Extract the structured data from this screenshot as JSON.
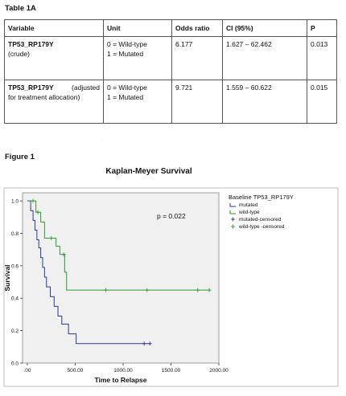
{
  "table": {
    "title": "Table 1A",
    "headers": [
      "Variable",
      "Unit",
      "Odds ratio",
      "CI (95%)",
      "P"
    ],
    "rows": [
      {
        "variable": "TP53_RP179Y",
        "variable_sub": "(crude)",
        "variable_suffix": "",
        "unit_line1": "0 = Wild-type",
        "unit_line2": "1 = Mutated",
        "odds_ratio": "6.177",
        "ci": "1.627 – 62.462",
        "p": "0.013"
      },
      {
        "variable": "TP53_RP179Y",
        "variable_sub": "for treatment allocation)",
        "variable_suffix": "(adjusted",
        "unit_line1": "0 = Wild-type",
        "unit_line2": "1 = Mutated",
        "odds_ratio": "9.721",
        "ci": "1.559 – 60.622",
        "p": "0.015"
      }
    ]
  },
  "figure": {
    "label": "Figure 1"
  },
  "chart_data": {
    "type": "line",
    "title": "Kaplan-Meyer Survival",
    "xlabel": "Time to Relapse",
    "ylabel": "Survival",
    "xlim": [
      -50,
      2000
    ],
    "ylim": [
      0,
      1.05
    ],
    "xticks": [
      0,
      500,
      1000,
      1500,
      2000
    ],
    "xtick_labels": [
      ".00",
      "500.00",
      "1000.00",
      "1500.00",
      "2000.00"
    ],
    "yticks": [
      0,
      0.2,
      0.4,
      0.6,
      0.8,
      1.0
    ],
    "ytick_labels": [
      "0.0",
      "0.2",
      "0.4",
      "0.6",
      "0.8",
      "1.0"
    ],
    "grid": false,
    "legend_position": "right",
    "legend_title": "Baseline TP53_RP179Y",
    "legend_entries": [
      "mutated",
      "wild-type",
      "mutated-censored",
      "wild-type -censored"
    ],
    "annotation": "p = 0.022",
    "series": [
      {
        "name": "mutated",
        "color": "#2b3a8c",
        "steps": [
          [
            0,
            1.0
          ],
          [
            35,
            0.94
          ],
          [
            60,
            0.88
          ],
          [
            80,
            0.82
          ],
          [
            100,
            0.76
          ],
          [
            120,
            0.71
          ],
          [
            140,
            0.65
          ],
          [
            160,
            0.59
          ],
          [
            180,
            0.53
          ],
          [
            200,
            0.47
          ],
          [
            240,
            0.41
          ],
          [
            280,
            0.35
          ],
          [
            320,
            0.29
          ],
          [
            360,
            0.24
          ],
          [
            430,
            0.18
          ],
          [
            510,
            0.12
          ],
          [
            1280,
            0.12
          ]
        ],
        "censored_x": [
          1220,
          1280
        ]
      },
      {
        "name": "wild-type",
        "color": "#2e9a2e",
        "steps": [
          [
            0,
            1.0
          ],
          [
            90,
            0.93
          ],
          [
            140,
            0.87
          ],
          [
            180,
            0.77
          ],
          [
            300,
            0.72
          ],
          [
            340,
            0.67
          ],
          [
            390,
            0.56
          ],
          [
            410,
            0.45
          ],
          [
            1900,
            0.45
          ]
        ],
        "censored_x": [
          60,
          110,
          250,
          380,
          820,
          1250,
          1780,
          1900
        ]
      }
    ]
  }
}
